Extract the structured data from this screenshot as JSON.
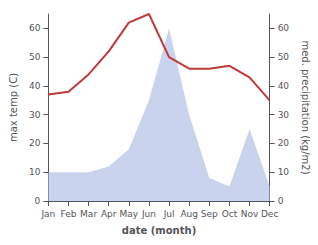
{
  "chart_data": {
    "type": "line",
    "categories": [
      "Jan",
      "Feb",
      "Mar",
      "Apr",
      "May",
      "Jun",
      "Jul",
      "Aug",
      "Sep",
      "Oct",
      "Nov",
      "Dec"
    ],
    "xlabel": "date (month)",
    "ylabel": "max temp (C)",
    "y2label": "med. precipitation (kg/m2)",
    "series": [
      {
        "type": "line",
        "color": "#c0393b",
        "values": [
          37,
          38,
          44,
          52,
          62,
          65,
          50,
          46,
          46,
          47,
          43,
          35
        ]
      },
      {
        "type": "area",
        "axis": "y2",
        "color": "#b8c4e8",
        "values": [
          10,
          10,
          10,
          12,
          18,
          35,
          60,
          30,
          8,
          5,
          25,
          5
        ]
      }
    ],
    "ylim": [
      0,
      65
    ],
    "yticks": [
      0,
      10,
      20,
      30,
      40,
      50,
      60
    ],
    "y2lim": [
      0,
      65
    ],
    "y2ticks": [
      0,
      10,
      20,
      30,
      40,
      50,
      60
    ],
    "grid": false
  }
}
